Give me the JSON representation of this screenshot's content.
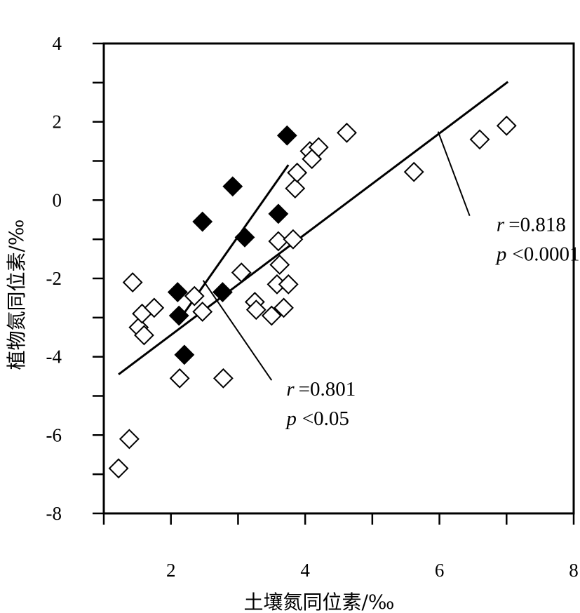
{
  "chart_data": {
    "type": "scatter",
    "title": "",
    "xlabel": "土壤氮同位素/‰",
    "ylabel": "植物氮同位素/‰",
    "xlim": [
      1,
      8
    ],
    "ylim": [
      -8,
      4
    ],
    "xticks": [
      1,
      2,
      3,
      4,
      5,
      6,
      7,
      8
    ],
    "yticks": [
      -8,
      -7,
      -6,
      -5,
      -4,
      -3,
      -2,
      -1,
      0,
      1,
      2,
      3,
      4
    ],
    "xtick_labels": [
      "2",
      "4",
      "6",
      "8"
    ],
    "ytick_labels": [
      "4",
      "2",
      "0",
      "-2",
      "-4",
      "-6",
      "-8"
    ],
    "series": [
      {
        "name": "open diamonds",
        "marker": "open-diamond",
        "color": "#000000",
        "points": [
          [
            1.22,
            -6.85
          ],
          [
            1.38,
            -6.1
          ],
          [
            1.43,
            -2.1
          ],
          [
            1.52,
            -3.25
          ],
          [
            1.57,
            -2.9
          ],
          [
            1.6,
            -3.45
          ],
          [
            1.75,
            -2.75
          ],
          [
            2.13,
            -4.55
          ],
          [
            2.35,
            -2.45
          ],
          [
            2.47,
            -2.85
          ],
          [
            2.78,
            -4.55
          ],
          [
            3.05,
            -1.85
          ],
          [
            3.25,
            -2.6
          ],
          [
            3.27,
            -2.8
          ],
          [
            3.5,
            -2.95
          ],
          [
            3.58,
            -2.15
          ],
          [
            3.6,
            -1.05
          ],
          [
            3.62,
            -1.65
          ],
          [
            3.68,
            -2.75
          ],
          [
            3.75,
            -2.15
          ],
          [
            3.82,
            -1.0
          ],
          [
            3.85,
            0.3
          ],
          [
            3.88,
            0.7
          ],
          [
            4.07,
            1.25
          ],
          [
            4.1,
            1.05
          ],
          [
            4.2,
            1.35
          ],
          [
            4.62,
            1.72
          ],
          [
            5.62,
            0.72
          ],
          [
            6.6,
            1.55
          ],
          [
            7.0,
            1.9
          ]
        ]
      },
      {
        "name": "filled diamonds",
        "marker": "filled-diamond",
        "color": "#000000",
        "points": [
          [
            2.1,
            -2.35
          ],
          [
            2.12,
            -2.95
          ],
          [
            2.2,
            -3.95
          ],
          [
            2.47,
            -0.55
          ],
          [
            2.77,
            -2.35
          ],
          [
            2.92,
            0.35
          ],
          [
            3.1,
            -0.95
          ],
          [
            3.6,
            -0.35
          ],
          [
            3.73,
            1.65
          ]
        ]
      }
    ],
    "fit_lines": [
      {
        "name": "regression-all",
        "from": [
          1.22,
          -4.45
        ],
        "to": [
          7.02,
          3.02
        ]
      },
      {
        "name": "regression-filled",
        "from": [
          2.15,
          -3.0
        ],
        "to": [
          3.75,
          0.9
        ]
      }
    ],
    "annotations": [
      {
        "name": "annotation-all",
        "r_label": "r",
        "r_value": "=0.818",
        "p_label": "p",
        "p_value": "<0.0001",
        "pointer_from": [
          5.98,
          1.75
        ],
        "pointer_to": [
          6.45,
          -0.4
        ],
        "text_at": [
          6.85,
          -0.4
        ]
      },
      {
        "name": "annotation-filled",
        "r_label": "r",
        "r_value": "=0.801",
        "p_label": "p",
        "p_value": "<0.05",
        "pointer_from": [
          2.48,
          -2.05
        ],
        "pointer_to": [
          3.5,
          -4.6
        ],
        "text_at": [
          3.72,
          -4.6
        ]
      }
    ]
  }
}
